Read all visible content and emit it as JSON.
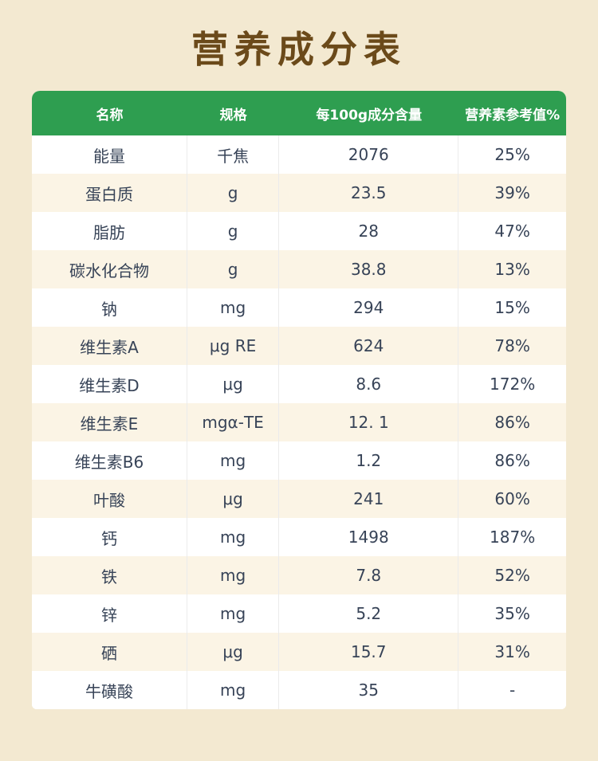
{
  "page": {
    "title": "营养成分表"
  },
  "colors": {
    "background": "#f3e9d1",
    "title_brown": "#6b4a1a",
    "header_green": "#2e9e50",
    "row_alt": "#fbf4e5",
    "body_text": "#374357"
  },
  "table": {
    "headers": [
      "名称",
      "规格",
      "每100g成分含量",
      "营养素参考值%"
    ],
    "rows": [
      [
        "能量",
        "千焦",
        "2076",
        "25%"
      ],
      [
        "蛋白质",
        "g",
        "23.5",
        "39%"
      ],
      [
        "脂肪",
        "g",
        "28",
        "47%"
      ],
      [
        "碳水化合物",
        "g",
        "38.8",
        "13%"
      ],
      [
        "钠",
        "mg",
        "294",
        "15%"
      ],
      [
        "维生素A",
        "μg RE",
        "624",
        "78%"
      ],
      [
        "维生素D",
        "μg",
        "8.6",
        "172%"
      ],
      [
        "维生素E",
        "mgα-TE",
        "12. 1",
        "86%"
      ],
      [
        "维生素B6",
        "mg",
        "1.2",
        "86%"
      ],
      [
        "叶酸",
        "μg",
        "241",
        "60%"
      ],
      [
        "钙",
        "mg",
        "1498",
        "187%"
      ],
      [
        "铁",
        "mg",
        "7.8",
        "52%"
      ],
      [
        "锌",
        "mg",
        "5.2",
        "35%"
      ],
      [
        "硒",
        "μg",
        "15.7",
        "31%"
      ],
      [
        "牛磺酸",
        "mg",
        "35",
        "-"
      ]
    ]
  }
}
